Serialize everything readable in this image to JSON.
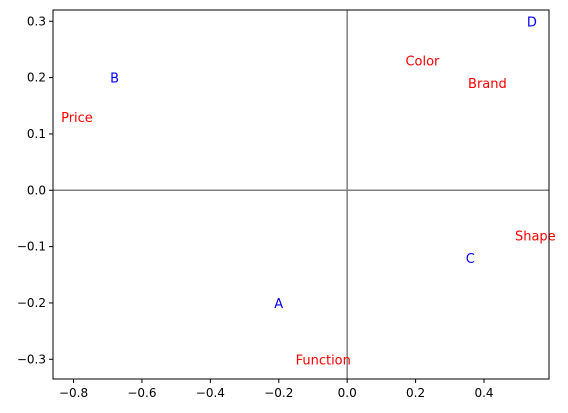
{
  "chart_data": {
    "type": "scatter",
    "title": "",
    "xlabel": "",
    "ylabel": "",
    "xlim": [
      -0.86,
      0.59
    ],
    "ylim": [
      -0.335,
      0.32
    ],
    "xticks": [
      -0.8,
      -0.6,
      -0.4,
      -0.2,
      0.0,
      0.2,
      0.4
    ],
    "xtick_labels": [
      "−0.8",
      "−0.6",
      "−0.4",
      "−0.2",
      "0.0",
      "0.2",
      "0.4"
    ],
    "yticks": [
      -0.3,
      -0.2,
      -0.1,
      0.0,
      0.1,
      0.2,
      0.3
    ],
    "ytick_labels": [
      "−0.3",
      "−0.2",
      "−0.1",
      "0.0",
      "0.1",
      "0.2",
      "0.3"
    ],
    "grid": false,
    "reference_lines": {
      "x": 0.0,
      "y": 0.0,
      "color": "#808080"
    },
    "series": [
      {
        "color": "#0000ff",
        "points": [
          {
            "label": "A",
            "x": -0.2,
            "y": -0.2
          },
          {
            "label": "B",
            "x": -0.68,
            "y": 0.2
          },
          {
            "label": "C",
            "x": 0.36,
            "y": -0.12
          },
          {
            "label": "D",
            "x": 0.54,
            "y": 0.3
          }
        ]
      },
      {
        "color": "#ff0000",
        "points": [
          {
            "label": "Price",
            "x": -0.79,
            "y": 0.13
          },
          {
            "label": "Color",
            "x": 0.22,
            "y": 0.23
          },
          {
            "label": "Brand",
            "x": 0.41,
            "y": 0.19
          },
          {
            "label": "Shape",
            "x": 0.55,
            "y": -0.08
          },
          {
            "label": "Function",
            "x": -0.07,
            "y": -0.3
          }
        ]
      }
    ]
  }
}
